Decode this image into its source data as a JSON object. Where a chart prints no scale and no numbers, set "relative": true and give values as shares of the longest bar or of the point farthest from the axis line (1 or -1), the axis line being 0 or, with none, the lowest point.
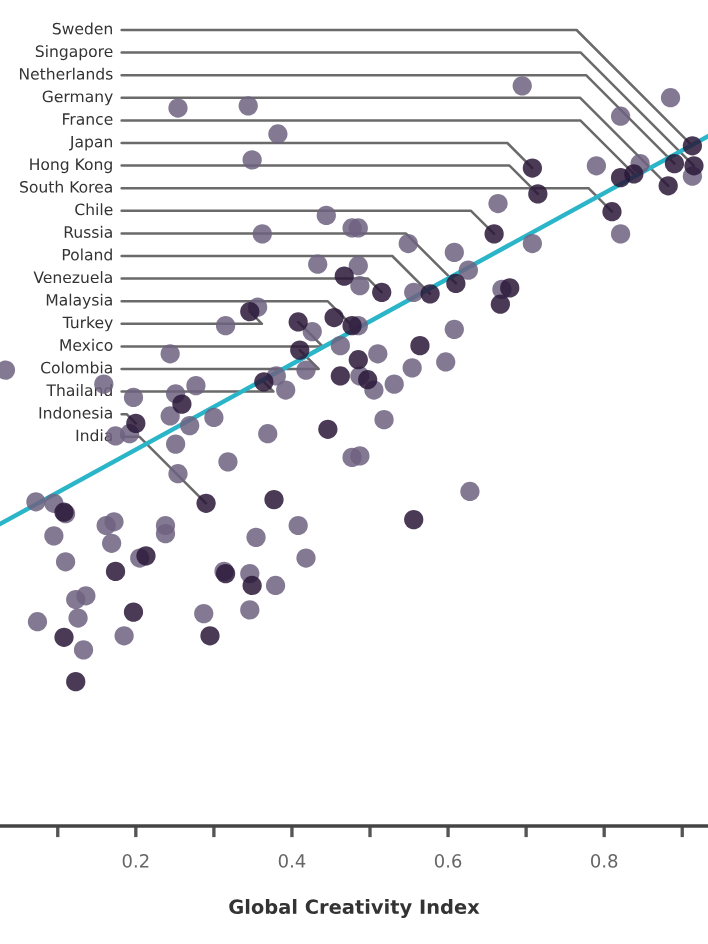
{
  "chart_data": {
    "type": "scatter",
    "xlabel": "Global Creativity Index",
    "relative": true,
    "tick_labels": "x",
    "xlim": [
      0.026,
      0.933
    ],
    "xticks": [
      {
        "value": 0.1,
        "label": null
      },
      0.2,
      {
        "value": 0.3,
        "label": null
      },
      0.4,
      {
        "value": 0.5,
        "label": null
      },
      0.6,
      {
        "value": 0.7,
        "label": null
      },
      0.8,
      {
        "value": 0.9,
        "label": null
      }
    ],
    "series": [
      {
        "marker": "circle",
        "color": "#6e6180",
        "x": [
          0.254,
          0.344,
          0.382,
          0.349,
          0.444,
          0.477,
          0.362,
          0.433,
          0.356,
          0.315,
          0.426,
          0.462,
          0.244,
          0.033,
          0.418,
          0.38,
          0.392,
          0.159,
          0.277,
          0.197,
          0.251,
          0.244,
          0.269,
          0.3,
          0.174,
          0.192,
          0.251,
          0.369,
          0.477,
          0.318,
          0.254,
          0.695,
          0.885,
          0.821,
          0.79,
          0.846,
          0.913,
          0.664,
          0.821,
          0.708,
          0.485,
          0.549,
          0.608,
          0.626,
          0.556,
          0.485,
          0.487,
          0.669,
          0.608,
          0.485,
          0.597,
          0.554,
          0.51,
          0.487,
          0.505,
          0.531,
          0.518,
          0.487,
          0.072,
          0.095,
          0.11,
          0.408,
          0.162,
          0.172,
          0.238,
          0.095,
          0.169,
          0.354,
          0.418,
          0.11,
          0.205,
          0.313,
          0.346,
          0.379,
          0.136,
          0.123,
          0.126,
          0.074,
          0.287,
          0.346,
          0.185,
          0.133,
          0.628,
          0.238
        ],
        "values": [
          0.97,
          0.973,
          0.935,
          0.9,
          0.825,
          0.808,
          0.8,
          0.759,
          0.701,
          0.676,
          0.668,
          0.649,
          0.638,
          0.616,
          0.616,
          0.608,
          0.589,
          0.597,
          0.595,
          0.579,
          0.584,
          0.554,
          0.541,
          0.552,
          0.527,
          0.53,
          0.516,
          0.53,
          0.498,
          0.492,
          0.476,
          1.0,
          0.984,
          0.959,
          0.892,
          0.895,
          0.878,
          0.841,
          0.8,
          0.787,
          0.808,
          0.787,
          0.775,
          0.751,
          0.721,
          0.757,
          0.73,
          0.725,
          0.671,
          0.676,
          0.627,
          0.619,
          0.638,
          0.608,
          0.589,
          0.597,
          0.549,
          0.5,
          0.438,
          0.436,
          0.422,
          0.406,
          0.406,
          0.411,
          0.406,
          0.392,
          0.382,
          0.39,
          0.362,
          0.357,
          0.362,
          0.344,
          0.341,
          0.325,
          0.311,
          0.306,
          0.281,
          0.276,
          0.287,
          0.292,
          0.257,
          0.238,
          0.452,
          0.395
        ]
      },
      {
        "marker": "circle",
        "color": "#2a1838",
        "x": [
          0.467,
          0.346,
          0.408,
          0.454,
          0.477,
          0.41,
          0.462,
          0.364,
          0.259,
          0.2,
          0.446,
          0.821,
          0.838,
          0.89,
          0.913,
          0.915,
          0.882,
          0.708,
          0.715,
          0.659,
          0.81,
          0.61,
          0.577,
          0.515,
          0.679,
          0.667,
          0.564,
          0.485,
          0.497,
          0.29,
          0.377,
          0.108,
          0.213,
          0.174,
          0.315,
          0.349,
          0.197,
          0.295,
          0.108,
          0.123,
          0.556
        ],
        "values": [
          0.743,
          0.695,
          0.681,
          0.687,
          0.676,
          0.643,
          0.608,
          0.6,
          0.57,
          0.544,
          0.536,
          0.876,
          0.881,
          0.895,
          0.919,
          0.892,
          0.865,
          0.889,
          0.854,
          0.8,
          0.83,
          0.733,
          0.719,
          0.721,
          0.727,
          0.705,
          0.649,
          0.63,
          0.603,
          0.436,
          0.441,
          0.424,
          0.365,
          0.344,
          0.341,
          0.325,
          0.289,
          0.257,
          0.255,
          0.195,
          0.414
        ]
      },
      {
        "type": "line",
        "color": "#2bb5c9",
        "x": [
          0.026,
          0.933
        ],
        "values": [
          0.408,
          0.932
        ]
      }
    ],
    "annotations": [
      {
        "text": "Sweden",
        "x": 0.913,
        "y": 0.919
      },
      {
        "text": "Singapore",
        "x": 0.915,
        "y": 0.892
      },
      {
        "text": "Netherlands",
        "x": 0.89,
        "y": 0.895
      },
      {
        "text": "Germany",
        "x": 0.882,
        "y": 0.865
      },
      {
        "text": "France",
        "x": 0.838,
        "y": 0.881
      },
      {
        "text": "Japan",
        "x": 0.708,
        "y": 0.889
      },
      {
        "text": "Hong Kong",
        "x": 0.715,
        "y": 0.854
      },
      {
        "text": "South Korea",
        "x": 0.81,
        "y": 0.83
      },
      {
        "text": "Chile",
        "x": 0.659,
        "y": 0.8
      },
      {
        "text": "Russia",
        "x": 0.61,
        "y": 0.733
      },
      {
        "text": "Poland",
        "x": 0.577,
        "y": 0.719
      },
      {
        "text": "Venezuela",
        "x": 0.515,
        "y": 0.721
      },
      {
        "text": "Malaysia",
        "x": 0.477,
        "y": 0.676
      },
      {
        "text": "Turkey",
        "x": 0.346,
        "y": 0.695
      },
      {
        "text": "Mexico",
        "x": 0.408,
        "y": 0.681
      },
      {
        "text": "Colombia",
        "x": 0.41,
        "y": 0.643
      },
      {
        "text": "Thailand",
        "x": 0.364,
        "y": 0.6
      },
      {
        "text": "Indonesia",
        "x": 0.2,
        "y": 0.544
      },
      {
        "text": "India",
        "x": 0.29,
        "y": 0.436
      }
    ]
  }
}
